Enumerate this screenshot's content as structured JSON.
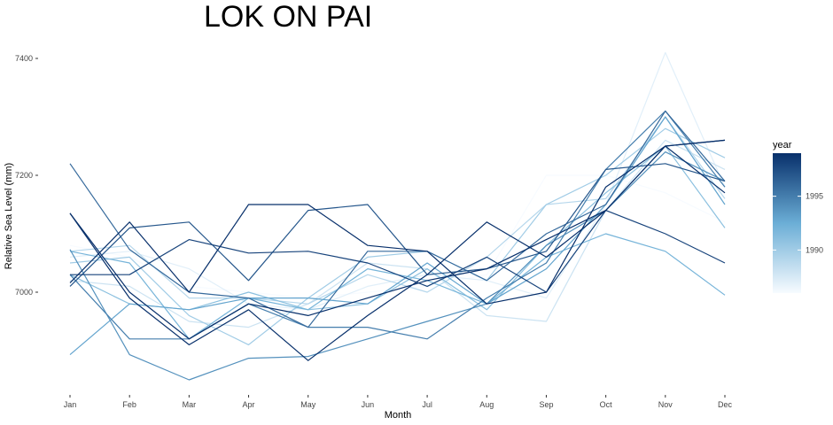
{
  "chart_data": {
    "type": "line",
    "title": "LOK ON PAI",
    "xlabel": "Month",
    "ylabel": "Relative Sea Level (mm)",
    "categories": [
      "Jan",
      "Feb",
      "Mar",
      "Apr",
      "May",
      "Jun",
      "Jul",
      "Aug",
      "Sep",
      "Oct",
      "Nov",
      "Dec"
    ],
    "y_ticks": [
      7000,
      7200,
      7400
    ],
    "ylim": [
      6830,
      7430
    ],
    "grid": false,
    "legend": {
      "title": "year",
      "position": "right",
      "type": "colorbar",
      "range": [
        1986,
        1999
      ],
      "ticks": [
        1990,
        1995
      ],
      "color_low": "#f7fbff",
      "color_high": "#08306b"
    },
    "series": [
      {
        "year": 1986,
        "values": [
          7080,
          7060,
          7010,
          7000,
          6990,
          7000,
          7010,
          7030,
          7200,
          7200,
          7170,
          7120
        ]
      },
      {
        "year": 1987,
        "values": [
          7060,
          7070,
          7040,
          6980,
          6970,
          7010,
          7030,
          7020,
          6990,
          7150,
          7410,
          7180
        ]
      },
      {
        "year": 1988,
        "values": [
          7020,
          7010,
          6950,
          6940,
          6980,
          7050,
          7040,
          6960,
          6950,
          7140,
          7260,
          7210
        ]
      },
      {
        "year": 1989,
        "values": [
          7070,
          7080,
          6990,
          6990,
          6980,
          7030,
          7000,
          7060,
          7150,
          7160,
          7300,
          7160
        ]
      },
      {
        "year": 1990,
        "values": [
          7050,
          7060,
          6960,
          6910,
          6990,
          7060,
          7070,
          7020,
          7150,
          7200,
          7280,
          7230
        ]
      },
      {
        "year": 1991,
        "values": [
          7030,
          6980,
          6970,
          7000,
          6970,
          6980,
          7040,
          6970,
          7080,
          7170,
          7250,
          7110
        ]
      },
      {
        "year": 1992,
        "values": [
          7070,
          7050,
          6920,
          6990,
          6970,
          7040,
          7020,
          6980,
          7060,
          7100,
          7070,
          6995
        ]
      },
      {
        "year": 1993,
        "values": [
          6893,
          6980,
          6970,
          6990,
          6990,
          6980,
          7050,
          6980,
          7040,
          7150,
          7300,
          7150
        ]
      },
      {
        "year": 1994,
        "values": [
          7073,
          6893,
          6850,
          6887,
          6890,
          6920,
          6950,
          6980,
          7080,
          7140,
          7240,
          7190
        ]
      },
      {
        "year": 1995,
        "values": [
          7030,
          6920,
          6920,
          6980,
          6940,
          6940,
          6920,
          6990,
          7050,
          7210,
          7310,
          7180
        ]
      },
      {
        "year": 1996,
        "values": [
          7220,
          7073,
          7000,
          6990,
          6940,
          7070,
          7070,
          7020,
          7100,
          7150,
          7310,
          7190
        ]
      },
      {
        "year": 1997,
        "values": [
          7010,
          7110,
          7120,
          7020,
          7140,
          7150,
          7030,
          7040,
          7070,
          7210,
          7220,
          7190
        ]
      },
      {
        "year": 1998,
        "values": [
          7030,
          7030,
          7090,
          7067,
          7070,
          7050,
          7010,
          7060,
          7000,
          7140,
          7100,
          7050
        ]
      },
      {
        "year": 1999,
        "values": [
          7135,
          6990,
          6910,
          6970,
          6883,
          6960,
          7030,
          7120,
          7060,
          7140,
          7250,
          7260
        ]
      },
      {
        "year": 1999,
        "values": [
          7016,
          7120,
          7000,
          7150,
          7150,
          7080,
          7070,
          6980,
          7000,
          7180,
          7250,
          7170
        ]
      },
      {
        "year": 1999,
        "values": [
          7135,
          7000,
          6920,
          6980,
          6960,
          6990,
          7020,
          7040,
          7090,
          7140,
          7250,
          7260
        ]
      }
    ]
  }
}
